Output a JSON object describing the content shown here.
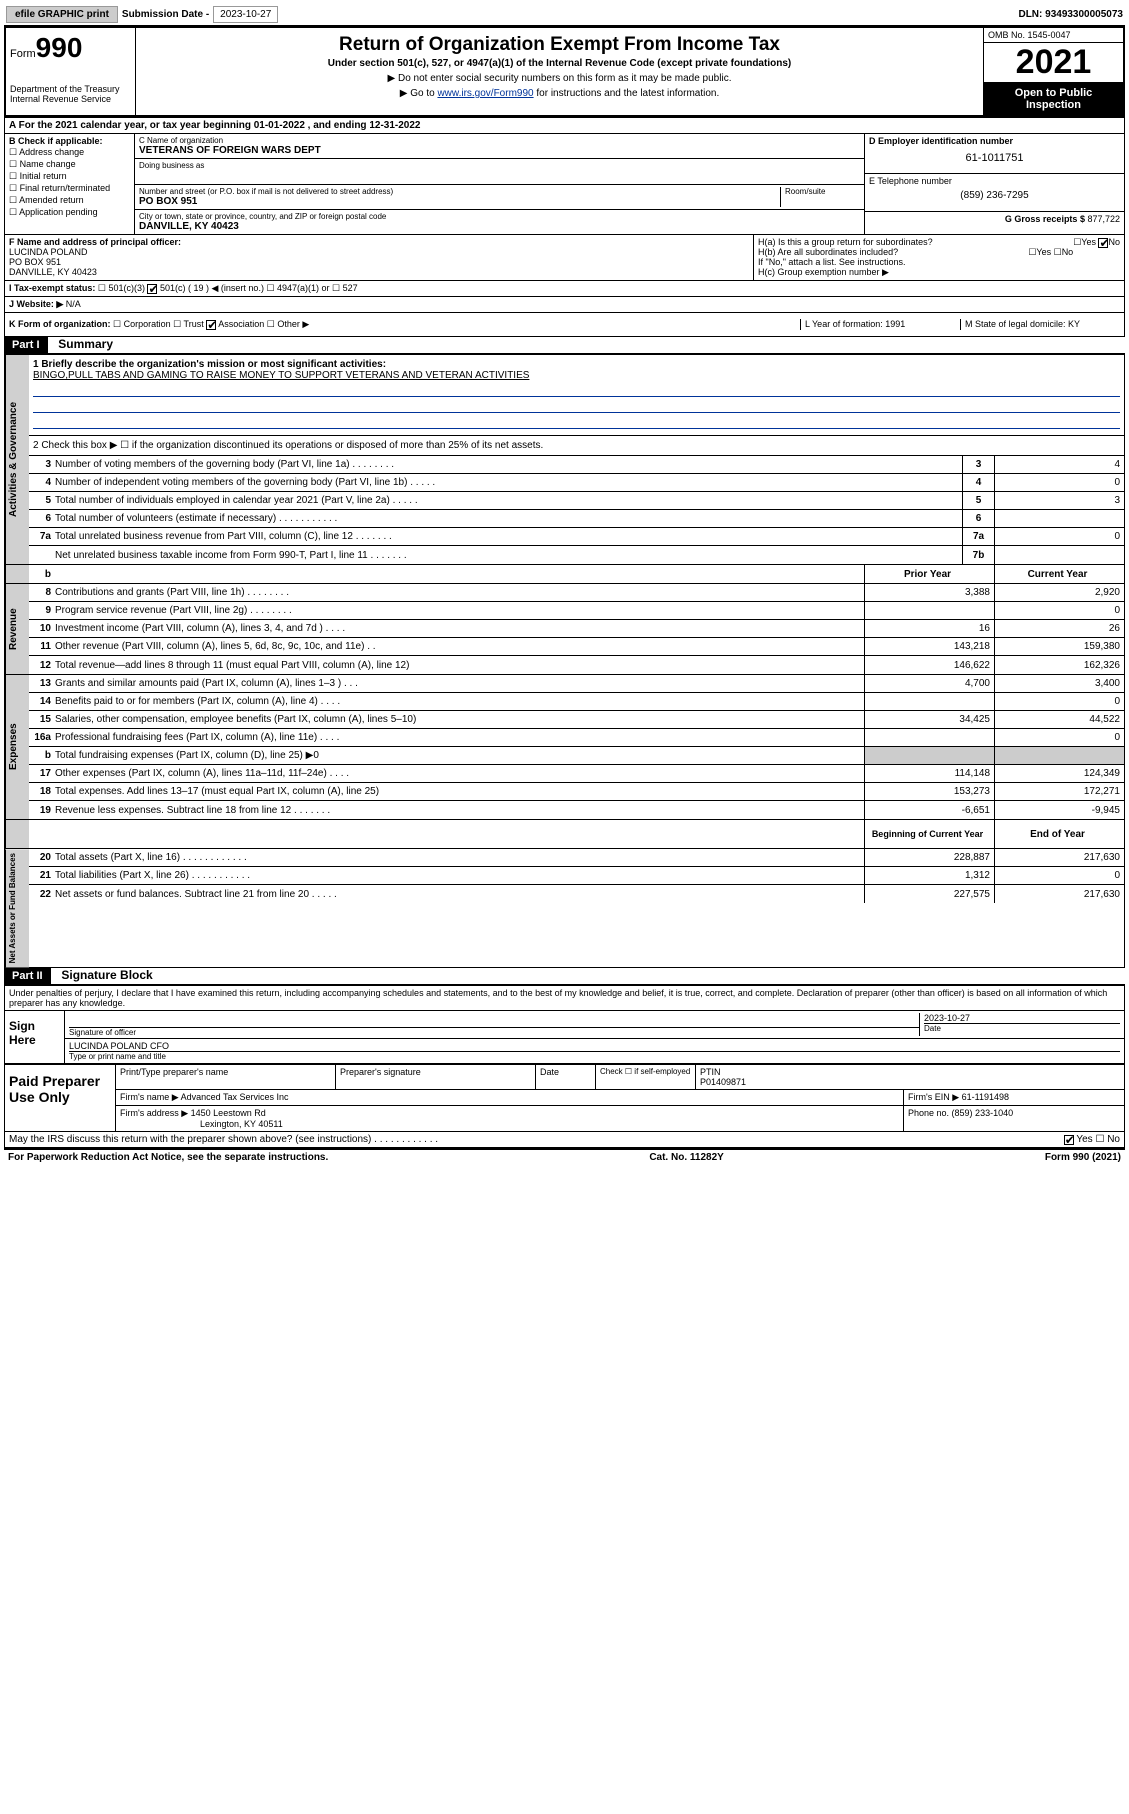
{
  "topbar": {
    "efile": "efile GRAPHIC print",
    "sub_label": "Submission Date - ",
    "sub_date": "2023-10-27",
    "dln": "DLN: 93493300005073"
  },
  "header": {
    "form_word": "Form",
    "form_num": "990",
    "dept": "Department of the Treasury\nInternal Revenue Service",
    "title": "Return of Organization Exempt From Income Tax",
    "sub": "Under section 501(c), 527, or 4947(a)(1) of the Internal Revenue Code (except private foundations)",
    "note1": "▶ Do not enter social security numbers on this form as it may be made public.",
    "note2_pre": "▶ Go to ",
    "note2_link": "www.irs.gov/Form990",
    "note2_post": " for instructions and the latest information.",
    "omb": "OMB No. 1545-0047",
    "year": "2021",
    "inspection": "Open to Public Inspection"
  },
  "rowA": "A For the 2021 calendar year, or tax year beginning 01-01-2022    , and ending 12-31-2022",
  "colB": {
    "title": "B Check if applicable:",
    "items": [
      "Address change",
      "Name change",
      "Initial return",
      "Final return/terminated",
      "Amended return",
      "Application pending"
    ]
  },
  "colC": {
    "name_lbl": "C Name of organization",
    "name": "VETERANS OF FOREIGN WARS DEPT",
    "dba_lbl": "Doing business as",
    "addr_lbl": "Number and street (or P.O. box if mail is not delivered to street address)",
    "room_lbl": "Room/suite",
    "addr": "PO BOX 951",
    "city_lbl": "City or town, state or province, country, and ZIP or foreign postal code",
    "city": "DANVILLE, KY  40423"
  },
  "colD": {
    "ein_lbl": "D Employer identification number",
    "ein": "61-1011751",
    "tel_lbl": "E Telephone number",
    "tel": "(859) 236-7295",
    "gross_lbl": "G Gross receipts $ ",
    "gross": "877,722"
  },
  "colF": {
    "lbl": "F  Name and address of principal officer:",
    "name": "LUCINDA POLAND",
    "addr1": "PO BOX 951",
    "addr2": "DANVILLE, KY  40423"
  },
  "colH": {
    "ha": "H(a)  Is this a group return for subordinates?",
    "hb": "H(b)  Are all subordinates included?",
    "hb_note": "If \"No,\" attach a list. See instructions.",
    "hc": "H(c)  Group exemption number ▶",
    "yes": "Yes",
    "no": "No"
  },
  "rowI": {
    "lbl": "I    Tax-exempt status:",
    "opts": [
      "501(c)(3)",
      "501(c) ( 19 ) ◀ (insert no.)",
      "4947(a)(1) or",
      "527"
    ]
  },
  "rowJ": {
    "lbl": "J   Website: ▶ ",
    "val": "N/A"
  },
  "rowK": {
    "lbl": "K Form of organization:",
    "opts": [
      "Corporation",
      "Trust",
      "Association",
      "Other ▶"
    ],
    "l": "L Year of formation: 1991",
    "m": "M State of legal domicile: KY"
  },
  "part1": {
    "hdr": "Part I",
    "title": "Summary"
  },
  "mission": {
    "lbl": "1   Briefly describe the organization's mission or most significant activities:",
    "text": "BINGO,PULL TABS AND GAMING TO RAISE MONEY TO SUPPORT VETERANS AND VETERAN ACTIVITIES"
  },
  "line2": "2   Check this box ▶ ☐  if the organization discontinued its operations or disposed of more than 25% of its net assets.",
  "vtabs": {
    "gov": "Activities & Governance",
    "rev": "Revenue",
    "exp": "Expenses",
    "net": "Net Assets or Fund Balances"
  },
  "gov_rows": [
    {
      "n": "3",
      "t": "Number of voting members of the governing body (Part VI, line 1a)   .   .   .   .   .   .   .   .",
      "b": "3",
      "v": "4"
    },
    {
      "n": "4",
      "t": "Number of independent voting members of the governing body (Part VI, line 1b)   .   .   .   .   .",
      "b": "4",
      "v": "0"
    },
    {
      "n": "5",
      "t": "Total number of individuals employed in calendar year 2021 (Part V, line 2a)   .   .   .   .   .",
      "b": "5",
      "v": "3"
    },
    {
      "n": "6",
      "t": "Total number of volunteers (estimate if necessary)   .   .   .   .   .   .   .   .   .   .   .",
      "b": "6",
      "v": ""
    },
    {
      "n": "7a",
      "t": "Total unrelated business revenue from Part VIII, column (C), line 12   .   .   .   .   .   .   .",
      "b": "7a",
      "v": "0"
    },
    {
      "n": "",
      "t": "Net unrelated business taxable income from Form 990-T, Part I, line 11   .   .   .   .   .   .   .",
      "b": "7b",
      "v": ""
    }
  ],
  "hdr_prior": "Prior Year",
  "hdr_current": "Current Year",
  "rev_rows": [
    {
      "n": "8",
      "t": "Contributions and grants (Part VIII, line 1h)   .   .   .   .   .   .   .   .",
      "p": "3,388",
      "c": "2,920"
    },
    {
      "n": "9",
      "t": "Program service revenue (Part VIII, line 2g)   .   .   .   .   .   .   .   .",
      "p": "",
      "c": "0"
    },
    {
      "n": "10",
      "t": "Investment income (Part VIII, column (A), lines 3, 4, and 7d )   .   .   .   .",
      "p": "16",
      "c": "26"
    },
    {
      "n": "11",
      "t": "Other revenue (Part VIII, column (A), lines 5, 6d, 8c, 9c, 10c, and 11e)   .   .",
      "p": "143,218",
      "c": "159,380"
    },
    {
      "n": "12",
      "t": "Total revenue—add lines 8 through 11 (must equal Part VIII, column (A), line 12)",
      "p": "146,622",
      "c": "162,326"
    }
  ],
  "exp_rows": [
    {
      "n": "13",
      "t": "Grants and similar amounts paid (Part IX, column (A), lines 1–3 )   .   .   .",
      "p": "4,700",
      "c": "3,400"
    },
    {
      "n": "14",
      "t": "Benefits paid to or for members (Part IX, column (A), line 4)   .   .   .   .",
      "p": "",
      "c": "0"
    },
    {
      "n": "15",
      "t": "Salaries, other compensation, employee benefits (Part IX, column (A), lines 5–10)",
      "p": "34,425",
      "c": "44,522"
    },
    {
      "n": "16a",
      "t": "Professional fundraising fees (Part IX, column (A), line 11e)   .   .   .   .",
      "p": "",
      "c": "0"
    },
    {
      "n": "b",
      "t": "Total fundraising expenses (Part IX, column (D), line 25) ▶0",
      "p": "gray",
      "c": "gray"
    },
    {
      "n": "17",
      "t": "Other expenses (Part IX, column (A), lines 11a–11d, 11f–24e)   .   .   .   .",
      "p": "114,148",
      "c": "124,349"
    },
    {
      "n": "18",
      "t": "Total expenses. Add lines 13–17 (must equal Part IX, column (A), line 25)",
      "p": "153,273",
      "c": "172,271"
    },
    {
      "n": "19",
      "t": "Revenue less expenses. Subtract line 18 from line 12   .   .   .   .   .   .   .",
      "p": "-6,651",
      "c": "-9,945"
    }
  ],
  "hdr_begin": "Beginning of Current Year",
  "hdr_end": "End of Year",
  "net_rows": [
    {
      "n": "20",
      "t": "Total assets (Part X, line 16)   .   .   .   .   .   .   .   .   .   .   .   .",
      "p": "228,887",
      "c": "217,630"
    },
    {
      "n": "21",
      "t": "Total liabilities (Part X, line 26)   .   .   .   .   .   .   .   .   .   .   .",
      "p": "1,312",
      "c": "0"
    },
    {
      "n": "22",
      "t": "Net assets or fund balances. Subtract line 21 from line 20   .   .   .   .   .",
      "p": "227,575",
      "c": "217,630"
    }
  ],
  "part2": {
    "hdr": "Part II",
    "title": "Signature Block"
  },
  "sig": {
    "decl": "Under penalties of perjury, I declare that I have examined this return, including accompanying schedules and statements, and to the best of my knowledge and belief, it is true, correct, and complete. Declaration of preparer (other than officer) is based on all information of which preparer has any knowledge.",
    "sign_here": "Sign Here",
    "sig_officer": "Signature of officer",
    "date": "Date",
    "date_val": "2023-10-27",
    "name": "LUCINDA POLAND CFO",
    "name_lbl": "Type or print name and title"
  },
  "prep": {
    "title": "Paid Preparer Use Only",
    "c1": "Print/Type preparer's name",
    "c2": "Preparer's signature",
    "c3": "Date",
    "c4a": "Check ☐ if self-employed",
    "c4b": "PTIN",
    "ptin": "P01409871",
    "firm_name_lbl": "Firm's name    ▶ ",
    "firm_name": "Advanced Tax Services Inc",
    "firm_ein_lbl": "Firm's EIN ▶ ",
    "firm_ein": "61-1191498",
    "firm_addr_lbl": "Firm's address ▶ ",
    "firm_addr1": "1450 Leestown Rd",
    "firm_addr2": "Lexington, KY  40511",
    "phone_lbl": "Phone no. ",
    "phone": "(859) 233-1040"
  },
  "discuss": "May the IRS discuss this return with the preparer shown above? (see instructions)   .   .   .   .   .   .   .   .   .   .   .   .",
  "footer": {
    "left": "For Paperwork Reduction Act Notice, see the separate instructions.",
    "mid": "Cat. No. 11282Y",
    "right": "Form 990 (2021)"
  }
}
